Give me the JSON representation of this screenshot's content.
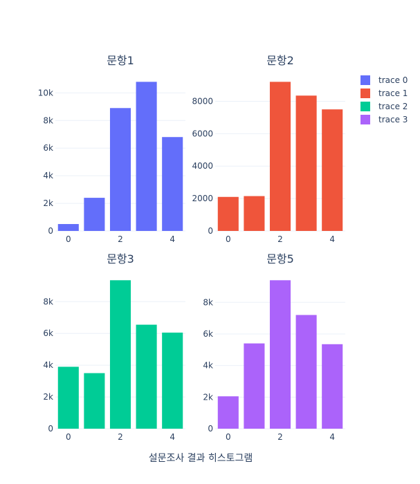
{
  "chart_data": {
    "type": "bar",
    "title": "",
    "xlabel": "설문조사 결과 히스토그램",
    "colors": [
      "#636efa",
      "#ef553b",
      "#00cc96",
      "#ab63fa"
    ],
    "legend": {
      "placement": "top-right",
      "entries": [
        "trace 0",
        "trace 1",
        "trace 2",
        "trace 3"
      ]
    },
    "subplots": [
      {
        "title": "문항1",
        "series_name": "trace 0",
        "color": "#636efa",
        "x": [
          0,
          1,
          2,
          3,
          4
        ],
        "values": [
          500,
          2400,
          8900,
          10800,
          6800
        ],
        "ylim": [
          0,
          11368
        ],
        "yticks": [
          0,
          2000,
          4000,
          6000,
          8000,
          10000
        ],
        "ytick_labels": [
          "0",
          "2k",
          "4k",
          "6k",
          "8k",
          "10k"
        ],
        "xticks": [
          0,
          2,
          4
        ],
        "xtick_labels": [
          "0",
          "2",
          "4"
        ]
      },
      {
        "title": "문항2",
        "series_name": "trace 1",
        "color": "#ef553b",
        "x": [
          0,
          1,
          2,
          3,
          4
        ],
        "values": [
          2100,
          2150,
          9200,
          8350,
          7500
        ],
        "ylim": [
          0,
          9684
        ],
        "yticks": [
          0,
          2000,
          4000,
          6000,
          8000
        ],
        "ytick_labels": [
          "0",
          "2000",
          "4000",
          "6000",
          "8000"
        ],
        "xticks": [
          0,
          2,
          4
        ],
        "xtick_labels": [
          "0",
          "2",
          "4"
        ]
      },
      {
        "title": "문항3",
        "series_name": "trace 2",
        "color": "#00cc96",
        "x": [
          0,
          1,
          2,
          3,
          4
        ],
        "values": [
          3900,
          3500,
          9350,
          6550,
          6050
        ],
        "ylim": [
          0,
          9842
        ],
        "yticks": [
          0,
          2000,
          4000,
          6000,
          8000
        ],
        "ytick_labels": [
          "0",
          "2k",
          "4k",
          "6k",
          "8k"
        ],
        "xticks": [
          0,
          2,
          4
        ],
        "xtick_labels": [
          "0",
          "2",
          "4"
        ]
      },
      {
        "title": "문항5",
        "series_name": "trace 3",
        "color": "#ab63fa",
        "x": [
          0,
          1,
          2,
          3,
          4
        ],
        "values": [
          2050,
          5400,
          9400,
          7200,
          5350
        ],
        "ylim": [
          0,
          9895
        ],
        "yticks": [
          0,
          2000,
          4000,
          6000,
          8000
        ],
        "ytick_labels": [
          "0",
          "2k",
          "4k",
          "6k",
          "8k"
        ],
        "xticks": [
          0,
          2,
          4
        ],
        "xtick_labels": [
          "0",
          "2",
          "4"
        ]
      }
    ]
  }
}
